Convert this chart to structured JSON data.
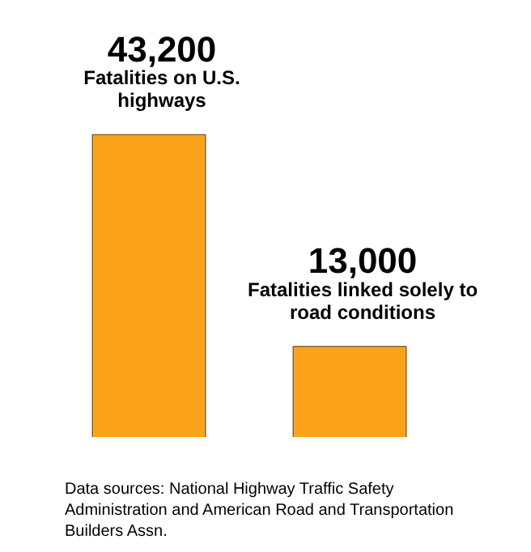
{
  "chart_data": {
    "type": "bar",
    "categories": [
      "Fatalities on U.S. highways",
      "Fatalities linked solely to road conditions"
    ],
    "values": [
      43200,
      13000
    ],
    "value_labels": [
      "43,200",
      "13,000"
    ],
    "color": "#fba21b",
    "legend": false,
    "annotations": [
      "Data sources: National Highway Traffic Safety Administration and American Road and Transportation Builders Assn."
    ]
  }
}
